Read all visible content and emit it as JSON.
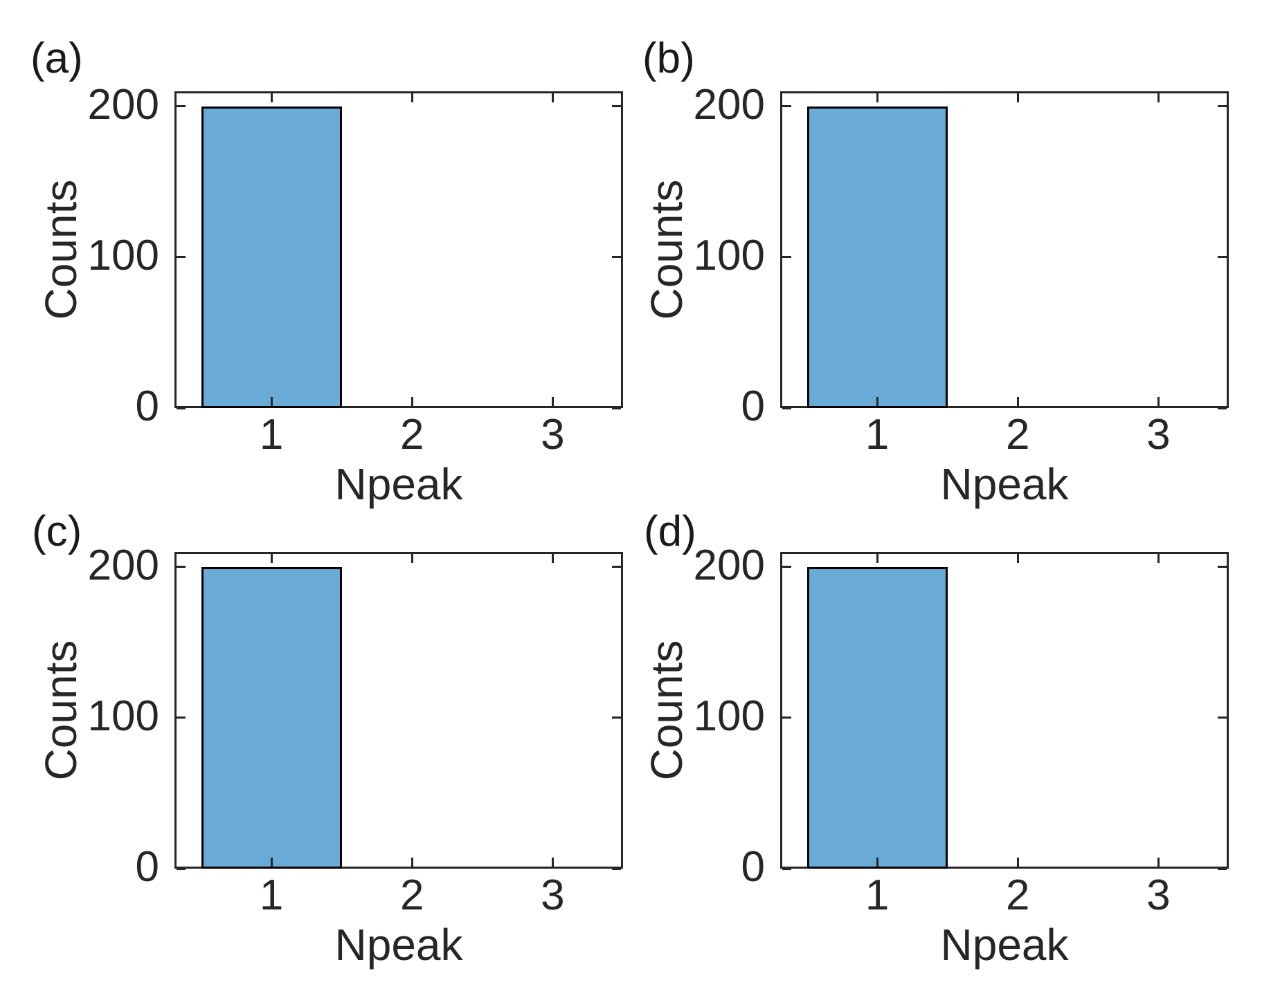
{
  "figure": {
    "background": "#ffffff",
    "axis_color": "#262626",
    "text_color": "#262626",
    "panel_label_color": "#1a1a1a",
    "bar_fill": "#6aaad7",
    "bar_edge": "#000000"
  },
  "chart_data": [
    {
      "panel_label": "(a)",
      "type": "bar",
      "histogram": true,
      "categories": [
        1,
        2,
        3
      ],
      "values": [
        200,
        0,
        0
      ],
      "bin_width": 1.0,
      "title": "",
      "xlabel": "Npeak",
      "ylabel": "Counts",
      "xticks": [
        1,
        2,
        3
      ],
      "yticks": [
        0,
        100,
        200
      ],
      "xlim": [
        0.31,
        3.5
      ],
      "ylim": [
        0,
        210
      ],
      "grid": false,
      "legend": false,
      "box": true,
      "tick_direction": "in"
    },
    {
      "panel_label": "(b)",
      "type": "bar",
      "histogram": true,
      "categories": [
        1,
        2,
        3
      ],
      "values": [
        200,
        0,
        0
      ],
      "bin_width": 1.0,
      "title": "",
      "xlabel": "Npeak",
      "ylabel": "Counts",
      "xticks": [
        1,
        2,
        3
      ],
      "yticks": [
        0,
        100,
        200
      ],
      "xlim": [
        0.31,
        3.5
      ],
      "ylim": [
        0,
        210
      ],
      "grid": false,
      "legend": false,
      "box": true,
      "tick_direction": "in"
    },
    {
      "panel_label": "(c)",
      "type": "bar",
      "histogram": true,
      "categories": [
        1,
        2,
        3
      ],
      "values": [
        200,
        0,
        0
      ],
      "bin_width": 1.0,
      "title": "",
      "xlabel": "Npeak",
      "ylabel": "Counts",
      "xticks": [
        1,
        2,
        3
      ],
      "yticks": [
        0,
        100,
        200
      ],
      "xlim": [
        0.31,
        3.5
      ],
      "ylim": [
        0,
        210
      ],
      "grid": false,
      "legend": false,
      "box": true,
      "tick_direction": "in"
    },
    {
      "panel_label": "(d)",
      "type": "bar",
      "histogram": true,
      "categories": [
        1,
        2,
        3
      ],
      "values": [
        200,
        0,
        0
      ],
      "bin_width": 1.0,
      "title": "",
      "xlabel": "Npeak",
      "ylabel": "Counts",
      "xticks": [
        1,
        2,
        3
      ],
      "yticks": [
        0,
        100,
        200
      ],
      "xlim": [
        0.31,
        3.5
      ],
      "ylim": [
        0,
        210
      ],
      "grid": false,
      "legend": false,
      "box": true,
      "tick_direction": "in"
    }
  ]
}
